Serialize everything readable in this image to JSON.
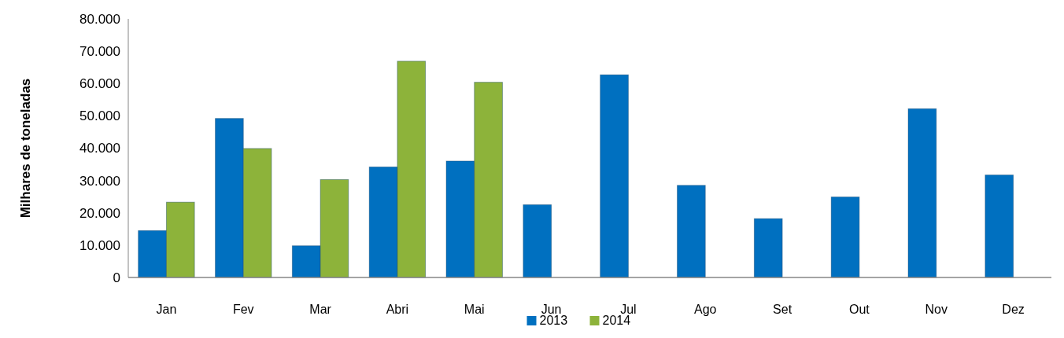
{
  "chart_data": {
    "type": "bar",
    "ylabel": "Milhares de toneladas",
    "categories": [
      "Jan",
      "Fev",
      "Mar",
      "Abri",
      "Mai",
      "Jun",
      "Jul",
      "Ago",
      "Set",
      "Out",
      "Nov",
      "Dez"
    ],
    "series": [
      {
        "name": "2013",
        "color": "#0070c0",
        "values": [
          14500,
          49200,
          9800,
          34200,
          36000,
          22500,
          62700,
          28500,
          18200,
          24900,
          52200,
          31700
        ]
      },
      {
        "name": "2014",
        "color": "#8db33a",
        "values": [
          23300,
          39900,
          30300,
          66900,
          60400,
          null,
          null,
          null,
          null,
          null,
          null,
          null
        ]
      }
    ],
    "ylim": [
      0,
      80000
    ],
    "yticks": [
      {
        "value": 0,
        "label": "0"
      },
      {
        "value": 10000,
        "label": "10.000"
      },
      {
        "value": 20000,
        "label": "20.000"
      },
      {
        "value": 30000,
        "label": "30.000"
      },
      {
        "value": 40000,
        "label": "40.000"
      },
      {
        "value": 50000,
        "label": "50.000"
      },
      {
        "value": 60000,
        "label": "60.000"
      },
      {
        "value": 70000,
        "label": "70.000"
      },
      {
        "value": 80000,
        "label": "80.000"
      }
    ],
    "grid": false,
    "legend": "bottom"
  }
}
